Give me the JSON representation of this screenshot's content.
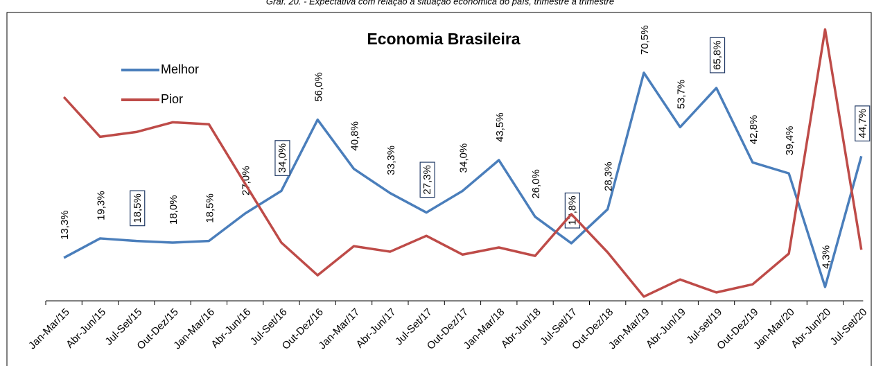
{
  "chart_data": {
    "type": "line",
    "caption": "Gráf. 20. - Expectativa com relação à situação econômica do país, trimestre a trimestre",
    "title": "Economia Brasileira",
    "categories": [
      "Jan-Mar/15",
      "Abr-Jun/15",
      "Jul-Set/15",
      "Out-Dez/15",
      "Jan-Mar/16",
      "Abr-Jun/16",
      "Jul-Set/16",
      "Out-Dez/16",
      "Jan-Mar/17",
      "Abr-Jun/17",
      "Jul-Set/17",
      "Out-Dez/17",
      "Jan-Mar/18",
      "Abr-Jun/18",
      "Jul-Set/17",
      "Out-Dez/18",
      "Jan-Mar/19",
      "Abr-Jun/19",
      "Jul-set/19",
      "Out-Dez/19",
      "Jan-Mar/20",
      "Abr-Jun/20",
      "Jul-Set/20"
    ],
    "series": [
      {
        "name": "Melhor",
        "color": "#4a7ebb",
        "values": [
          13.3,
          19.3,
          18.5,
          18.0,
          18.5,
          27.0,
          34.0,
          56.0,
          40.8,
          33.3,
          27.3,
          34.0,
          43.5,
          26.0,
          17.8,
          28.3,
          70.5,
          53.7,
          65.8,
          42.8,
          39.4,
          4.3,
          44.7
        ],
        "value_labels": [
          "13,3%",
          "19,3%",
          "18,5%",
          "18,0%",
          "18,5%",
          "27,0%",
          "34,0%",
          "56,0%",
          "40,8%",
          "33,3%",
          "27,3%",
          "34,0%",
          "43,5%",
          "26,0%",
          "17,8%",
          "28,3%",
          "70,5%",
          "53,7%",
          "65,8%",
          "42,8%",
          "39,4%",
          "4,3%",
          "44,7%"
        ]
      },
      {
        "name": "Pior",
        "color": "#be4b48",
        "values": [
          63.0,
          50.7,
          52.2,
          55.2,
          54.6,
          36.2,
          18.0,
          7.9,
          16.9,
          15.2,
          20.1,
          14.3,
          16.5,
          13.9,
          26.8,
          15.0,
          1.3,
          6.6,
          2.6,
          5.1,
          14.6,
          83.9,
          15.8
        ]
      }
    ],
    "ylim": [
      0,
      90
    ],
    "legend": "upper left"
  }
}
